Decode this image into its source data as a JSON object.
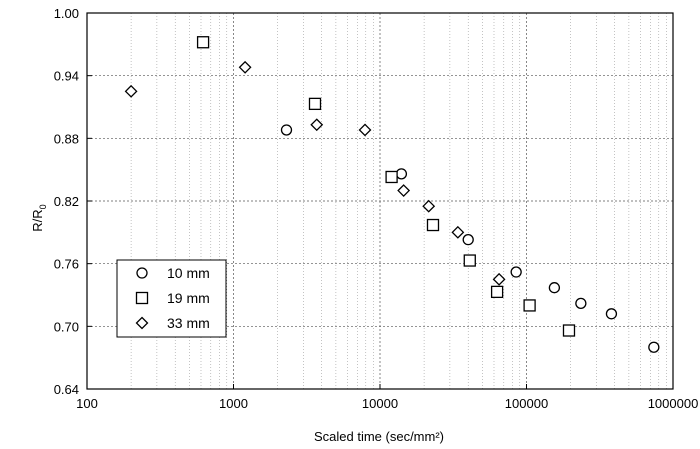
{
  "chart_data": {
    "type": "scatter",
    "xlabel": "Scaled time (sec/mm²)",
    "ylabel": "R/R",
    "ylabel_subscript": "0",
    "x_scale": "log",
    "xlim": [
      100,
      1000000
    ],
    "ylim": [
      0.64,
      1.0
    ],
    "x_ticks": [
      100,
      1000,
      10000,
      100000,
      1000000
    ],
    "x_tick_labels": [
      "100",
      "1000",
      "10000",
      "100000",
      "1000000"
    ],
    "y_ticks": [
      0.64,
      0.7,
      0.76,
      0.82,
      0.88,
      0.94,
      1.0
    ],
    "y_tick_labels": [
      "0.64",
      "0.70",
      "0.76",
      "0.82",
      "0.88",
      "0.94",
      "1.00"
    ],
    "grid": true,
    "legend_position": "bottom-left",
    "series": [
      {
        "name": "10 mm",
        "marker": "circle",
        "points": [
          [
            2300,
            0.888
          ],
          [
            14000,
            0.846
          ],
          [
            40000,
            0.783
          ],
          [
            85000,
            0.752
          ],
          [
            155000,
            0.737
          ],
          [
            235000,
            0.722
          ],
          [
            380000,
            0.712
          ],
          [
            740000,
            0.68
          ]
        ]
      },
      {
        "name": "19 mm",
        "marker": "square",
        "points": [
          [
            620,
            0.972
          ],
          [
            3600,
            0.913
          ],
          [
            12000,
            0.843
          ],
          [
            23000,
            0.797
          ],
          [
            41000,
            0.763
          ],
          [
            63000,
            0.733
          ],
          [
            105000,
            0.72
          ],
          [
            195000,
            0.696
          ]
        ]
      },
      {
        "name": "33 mm",
        "marker": "diamond",
        "points": [
          [
            200,
            0.925
          ],
          [
            1200,
            0.948
          ],
          [
            3700,
            0.893
          ],
          [
            7900,
            0.888
          ],
          [
            14500,
            0.83
          ],
          [
            21500,
            0.815
          ],
          [
            34000,
            0.79
          ],
          [
            65000,
            0.745
          ]
        ]
      }
    ]
  }
}
